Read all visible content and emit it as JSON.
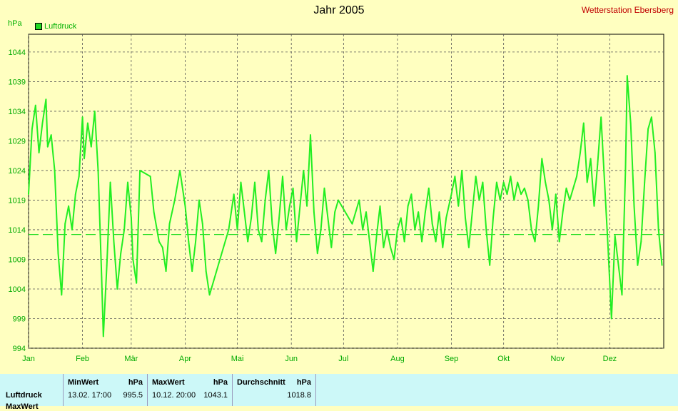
{
  "header": {
    "title": "Jahr 2005",
    "station": "Wetterstation Ebersberg",
    "unit": "hPa",
    "legend_label": "Luftdruck"
  },
  "colors": {
    "background": "#ffffc0",
    "series": "#22ee22",
    "station": "#c00000",
    "stats_bg": "#ccf8f8"
  },
  "chart_data": {
    "type": "line",
    "title": "Jahr 2005",
    "ylabel": "hPa",
    "ylim": [
      994,
      1047
    ],
    "yticks": [
      994,
      999,
      1004,
      1009,
      1014,
      1019,
      1024,
      1029,
      1034,
      1039,
      1044
    ],
    "xlim": [
      "2005-01-01",
      "2006-01-01"
    ],
    "xticks": [
      {
        "label": "Jan",
        "date": "2005-01-01"
      },
      {
        "label": "Feb",
        "date": "2005-02-01"
      },
      {
        "label": "Mär",
        "date": "2005-03-01"
      },
      {
        "label": "Apr",
        "date": "2005-04-01"
      },
      {
        "label": "Mai",
        "date": "2005-05-01"
      },
      {
        "label": "Jun",
        "date": "2005-06-01"
      },
      {
        "label": "Jul",
        "date": "2005-07-01"
      },
      {
        "label": "Aug",
        "date": "2005-08-01"
      },
      {
        "label": "Sep",
        "date": "2005-09-01"
      },
      {
        "label": "Okt",
        "date": "2005-10-01"
      },
      {
        "label": "Nov",
        "date": "2005-11-01"
      },
      {
        "label": "Dez",
        "date": "2005-12-01"
      }
    ],
    "grid": true,
    "legend": "top-left",
    "reference_line": {
      "value": 1013.2,
      "style": "dashed"
    },
    "series": [
      {
        "name": "Luftdruck",
        "points": [
          [
            "2005-01-01",
            1020
          ],
          [
            "2005-01-03",
            1031
          ],
          [
            "2005-01-05",
            1035
          ],
          [
            "2005-01-07",
            1027
          ],
          [
            "2005-01-09",
            1032
          ],
          [
            "2005-01-11",
            1036
          ],
          [
            "2005-01-12",
            1028
          ],
          [
            "2005-01-14",
            1030
          ],
          [
            "2005-01-16",
            1024
          ],
          [
            "2005-01-18",
            1010
          ],
          [
            "2005-01-20",
            1003
          ],
          [
            "2005-01-22",
            1015
          ],
          [
            "2005-01-24",
            1018
          ],
          [
            "2005-01-26",
            1014
          ],
          [
            "2005-01-28",
            1020
          ],
          [
            "2005-01-30",
            1023
          ],
          [
            "2005-02-01",
            1033
          ],
          [
            "2005-02-02",
            1026
          ],
          [
            "2005-02-04",
            1032
          ],
          [
            "2005-02-06",
            1028
          ],
          [
            "2005-02-08",
            1034
          ],
          [
            "2005-02-10",
            1024
          ],
          [
            "2005-02-12",
            1006
          ],
          [
            "2005-02-13",
            996
          ],
          [
            "2005-02-15",
            1008
          ],
          [
            "2005-02-17",
            1022
          ],
          [
            "2005-02-19",
            1012
          ],
          [
            "2005-02-21",
            1004
          ],
          [
            "2005-02-23",
            1010
          ],
          [
            "2005-02-25",
            1014
          ],
          [
            "2005-02-27",
            1022
          ],
          [
            "2005-03-01",
            1016
          ],
          [
            "2005-03-02",
            1009
          ],
          [
            "2005-03-04",
            1005
          ],
          [
            "2005-03-06",
            1024
          ],
          [
            "2005-03-12",
            1023
          ],
          [
            "2005-03-14",
            1017
          ],
          [
            "2005-03-17",
            1012
          ],
          [
            "2005-03-19",
            1011
          ],
          [
            "2005-03-21",
            1007
          ],
          [
            "2005-03-23",
            1015
          ],
          [
            "2005-03-26",
            1019
          ],
          [
            "2005-03-29",
            1024
          ],
          [
            "2005-04-01",
            1018
          ],
          [
            "2005-04-03",
            1012
          ],
          [
            "2005-04-05",
            1007
          ],
          [
            "2005-04-07",
            1012
          ],
          [
            "2005-04-09",
            1019
          ],
          [
            "2005-04-11",
            1015
          ],
          [
            "2005-04-13",
            1007
          ],
          [
            "2005-04-15",
            1003
          ],
          [
            "2005-04-21",
            1009
          ],
          [
            "2005-04-26",
            1014
          ],
          [
            "2005-04-29",
            1020
          ],
          [
            "2005-05-01",
            1014
          ],
          [
            "2005-05-03",
            1022
          ],
          [
            "2005-05-05",
            1017
          ],
          [
            "2005-05-07",
            1012
          ],
          [
            "2005-05-09",
            1016
          ],
          [
            "2005-05-11",
            1022
          ],
          [
            "2005-05-13",
            1014
          ],
          [
            "2005-05-15",
            1012
          ],
          [
            "2005-05-17",
            1019
          ],
          [
            "2005-05-19",
            1024
          ],
          [
            "2005-05-21",
            1015
          ],
          [
            "2005-05-23",
            1010
          ],
          [
            "2005-05-25",
            1016
          ],
          [
            "2005-05-27",
            1023
          ],
          [
            "2005-05-29",
            1014
          ],
          [
            "2005-05-31",
            1018
          ],
          [
            "2005-06-02",
            1021
          ],
          [
            "2005-06-04",
            1012
          ],
          [
            "2005-06-06",
            1018
          ],
          [
            "2005-06-08",
            1024
          ],
          [
            "2005-06-10",
            1018
          ],
          [
            "2005-06-12",
            1030
          ],
          [
            "2005-06-14",
            1017
          ],
          [
            "2005-06-16",
            1010
          ],
          [
            "2005-06-18",
            1014
          ],
          [
            "2005-06-20",
            1021
          ],
          [
            "2005-06-22",
            1016
          ],
          [
            "2005-06-24",
            1011
          ],
          [
            "2005-06-26",
            1017
          ],
          [
            "2005-06-28",
            1019
          ],
          [
            "2005-07-06",
            1015
          ],
          [
            "2005-07-10",
            1019
          ],
          [
            "2005-07-12",
            1014
          ],
          [
            "2005-07-14",
            1017
          ],
          [
            "2005-07-16",
            1012
          ],
          [
            "2005-07-18",
            1007
          ],
          [
            "2005-07-20",
            1013
          ],
          [
            "2005-07-22",
            1018
          ],
          [
            "2005-07-24",
            1011
          ],
          [
            "2005-07-26",
            1014
          ],
          [
            "2005-07-28",
            1011
          ],
          [
            "2005-07-30",
            1009
          ],
          [
            "2005-08-01",
            1014
          ],
          [
            "2005-08-03",
            1016
          ],
          [
            "2005-08-05",
            1012
          ],
          [
            "2005-08-07",
            1018
          ],
          [
            "2005-08-09",
            1020
          ],
          [
            "2005-08-11",
            1014
          ],
          [
            "2005-08-13",
            1017
          ],
          [
            "2005-08-15",
            1012
          ],
          [
            "2005-08-17",
            1017
          ],
          [
            "2005-08-19",
            1021
          ],
          [
            "2005-08-21",
            1015
          ],
          [
            "2005-08-23",
            1012
          ],
          [
            "2005-08-25",
            1017
          ],
          [
            "2005-08-27",
            1011
          ],
          [
            "2005-08-29",
            1016
          ],
          [
            "2005-09-01",
            1020
          ],
          [
            "2005-09-03",
            1023
          ],
          [
            "2005-09-05",
            1018
          ],
          [
            "2005-09-07",
            1024
          ],
          [
            "2005-09-09",
            1016
          ],
          [
            "2005-09-11",
            1011
          ],
          [
            "2005-09-13",
            1017
          ],
          [
            "2005-09-15",
            1023
          ],
          [
            "2005-09-17",
            1019
          ],
          [
            "2005-09-19",
            1022
          ],
          [
            "2005-09-21",
            1014
          ],
          [
            "2005-09-23",
            1008
          ],
          [
            "2005-09-25",
            1016
          ],
          [
            "2005-09-27",
            1022
          ],
          [
            "2005-09-29",
            1019
          ],
          [
            "2005-10-01",
            1022
          ],
          [
            "2005-10-03",
            1020
          ],
          [
            "2005-10-05",
            1023
          ],
          [
            "2005-10-07",
            1019
          ],
          [
            "2005-10-09",
            1022
          ],
          [
            "2005-10-11",
            1020
          ],
          [
            "2005-10-13",
            1021
          ],
          [
            "2005-10-15",
            1019
          ],
          [
            "2005-10-17",
            1014
          ],
          [
            "2005-10-19",
            1012
          ],
          [
            "2005-10-21",
            1018
          ],
          [
            "2005-10-23",
            1026
          ],
          [
            "2005-10-25",
            1022
          ],
          [
            "2005-10-27",
            1019
          ],
          [
            "2005-10-29",
            1014
          ],
          [
            "2005-10-31",
            1020
          ],
          [
            "2005-11-02",
            1012
          ],
          [
            "2005-11-04",
            1017
          ],
          [
            "2005-11-06",
            1021
          ],
          [
            "2005-11-08",
            1019
          ],
          [
            "2005-11-10",
            1021
          ],
          [
            "2005-11-12",
            1023
          ],
          [
            "2005-11-14",
            1027
          ],
          [
            "2005-11-16",
            1032
          ],
          [
            "2005-11-18",
            1022
          ],
          [
            "2005-11-20",
            1026
          ],
          [
            "2005-11-22",
            1018
          ],
          [
            "2005-11-24",
            1025
          ],
          [
            "2005-11-26",
            1033
          ],
          [
            "2005-11-28",
            1022
          ],
          [
            "2005-11-30",
            1011
          ],
          [
            "2005-12-02",
            999
          ],
          [
            "2005-12-04",
            1013
          ],
          [
            "2005-12-06",
            1008
          ],
          [
            "2005-12-08",
            1003
          ],
          [
            "2005-12-10",
            1024
          ],
          [
            "2005-12-11",
            1040
          ],
          [
            "2005-12-13",
            1032
          ],
          [
            "2005-12-15",
            1018
          ],
          [
            "2005-12-17",
            1008
          ],
          [
            "2005-12-19",
            1012
          ],
          [
            "2005-12-21",
            1022
          ],
          [
            "2005-12-23",
            1031
          ],
          [
            "2005-12-25",
            1033
          ],
          [
            "2005-12-27",
            1027
          ],
          [
            "2005-12-29",
            1014
          ],
          [
            "2005-12-31",
            1008
          ]
        ]
      }
    ]
  },
  "stats": {
    "row_label": "Luftdruck",
    "row2_label": "MaxWert",
    "min_header": "MinWert",
    "max_header": "MaxWert",
    "avg_header": "Durchschnitt",
    "unit": "hPa",
    "min_time": "13.02.  17:00",
    "min_value": "995.5",
    "max_time": "10.12.  20:00",
    "max_value": "1043.1",
    "avg_value": "1018.8"
  }
}
